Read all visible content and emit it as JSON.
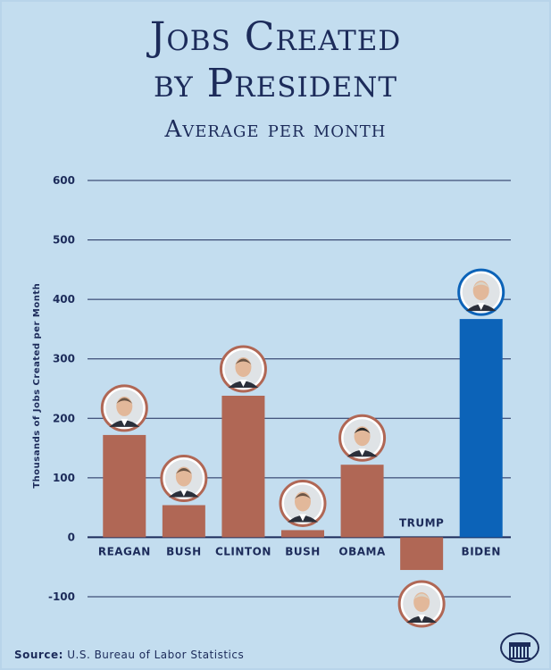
{
  "header": {
    "title_line1": "Jobs Created",
    "title_line2": "by President",
    "subtitle": "Average per month"
  },
  "footer": {
    "source_label": "Source:",
    "source_text": "U.S. Bureau of Labor Statistics",
    "seal_icon": "white-house-icon"
  },
  "colors": {
    "bar_default": "#b06755",
    "bar_highlight": "#0c63b8",
    "axis": "#1c2b5a",
    "background": "#c3ddef"
  },
  "chart_data": {
    "type": "bar",
    "title": "Jobs Created by President",
    "subtitle": "Average per month",
    "ylabel": "Thousands of Jobs Created per Month",
    "xlabel": "",
    "ylim": [
      -100,
      600
    ],
    "yticks": [
      600,
      500,
      400,
      300,
      200,
      100,
      0,
      -100
    ],
    "grid": true,
    "categories": [
      "Reagan",
      "Bush",
      "Clinton",
      "Bush",
      "Obama",
      "Trump",
      "Biden"
    ],
    "category_labels": [
      "REAGAN",
      "BUSH",
      "CLINTON",
      "BUSH",
      "OBAMA",
      "TRUMP",
      "BIDEN"
    ],
    "values": [
      172,
      54,
      238,
      12,
      122,
      -55,
      367
    ],
    "highlight": "Biden",
    "portrait_icons": [
      "reagan-portrait-icon",
      "bush-sr-portrait-icon",
      "clinton-portrait-icon",
      "bush-jr-portrait-icon",
      "obama-portrait-icon",
      "trump-portrait-icon",
      "biden-portrait-icon"
    ]
  }
}
